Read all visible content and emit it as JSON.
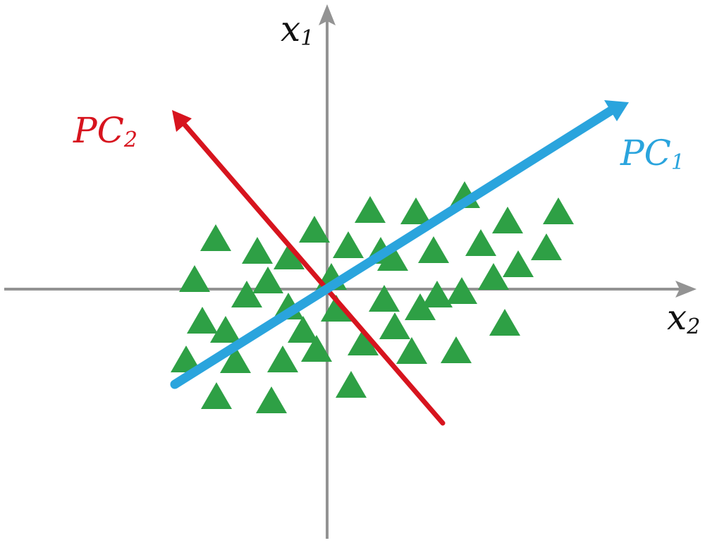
{
  "colors": {
    "axes": "#939393",
    "points": "#2ea045",
    "pc1": "#2aa4dd",
    "pc2": "#d7141e",
    "text": "#111111"
  },
  "labels": {
    "x1": {
      "main": "x",
      "sub": "1"
    },
    "x2": {
      "main": "x",
      "sub": "2"
    },
    "pc1": {
      "main": "PC",
      "sub": "1"
    },
    "pc2": {
      "main": "PC",
      "sub": "2"
    }
  },
  "point_count": 42
}
